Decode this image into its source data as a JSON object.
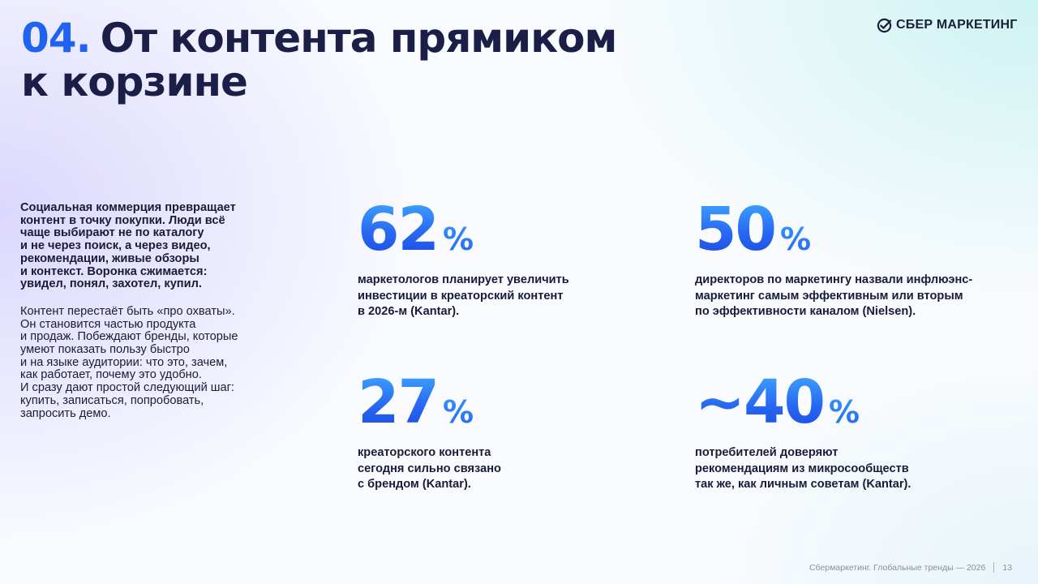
{
  "header": {
    "number": "04.",
    "title_line1": "От контента прямиком",
    "title_line2": "к корзине",
    "logo_text": "СБЕР МАРКЕТИНГ",
    "logo_icon": "sber-check-icon"
  },
  "intro": {
    "paragraph1": "Социальная коммерция превращает\nконтент в точку покупки. Люди всё\nчаще выбирают не по каталогу\nи не через поиск, а через видео,\nрекомендации, живые обзоры\nи контекст. Воронка сжимается:\nувидел, понял, захотел, купил.",
    "paragraph2": "Контент перестаёт быть «про охваты».\nОн становится частью продукта\nи продаж. Побеждают бренды, которые\nумеют показать пользу быстро\nи на языке аудитории: что это, зачем,\nкак работает, почему это удобно.\nИ сразу дают простой следующий шаг:\nкупить, записаться, попробовать,\nзапросить демо."
  },
  "stats": [
    {
      "value": "62",
      "unit": "%",
      "description": "маркетологов планирует увеличить\nинвестиции в креаторский контент\nв 2026-м (Kantar)."
    },
    {
      "value": "50",
      "unit": "%",
      "description": "директоров по маркетингу назвали инфлюэнс-\nмаркетинг самым эффективным или вторым\nпо эффективности каналом (Nielsen)."
    },
    {
      "value": "27",
      "unit": "%",
      "description": "креаторского контента\nсегодня сильно связано\nс брендом (Kantar)."
    },
    {
      "value": "~40",
      "unit": "%",
      "description": "потребителей доверяют\nрекомендациям из микросообществ\nтак же, как личным советам (Kantar)."
    }
  ],
  "footer": {
    "source": "Сбермаркетинг. Глобальные тренды — 2026",
    "page": "13"
  },
  "colors": {
    "accent_blue": "#1f63f0",
    "title_dark": "#1b1f47",
    "logo_green": "#21a038"
  }
}
